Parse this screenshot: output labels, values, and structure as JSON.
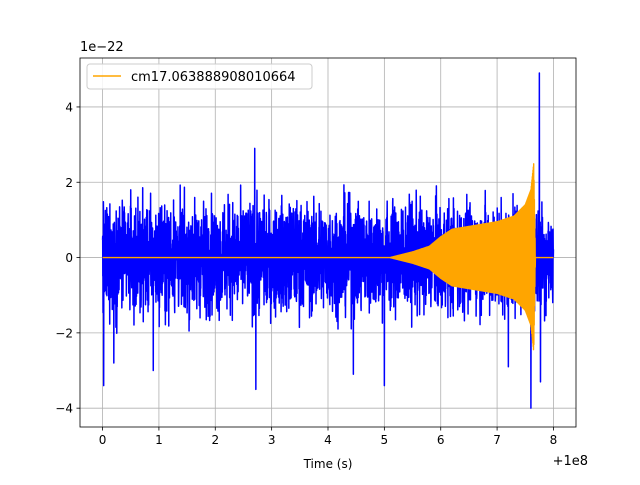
{
  "chart_data": {
    "type": "line",
    "title": "",
    "xlabel": "Time (s)",
    "ylabel": "",
    "xlim": [
      -0.4,
      8.4
    ],
    "ylim": [
      -4.5,
      5.3
    ],
    "x_offset_label": "+1e8",
    "y_scale_label": "1e−22",
    "x_ticks": [
      0,
      1,
      2,
      3,
      4,
      5,
      6,
      7,
      8
    ],
    "x_tick_labels": [
      "0",
      "1",
      "2",
      "3",
      "4",
      "5",
      "6",
      "7",
      "8"
    ],
    "y_ticks": [
      -4,
      -2,
      0,
      2,
      4
    ],
    "y_tick_labels": [
      "−4",
      "−2",
      "0",
      "2",
      "4"
    ],
    "grid": true,
    "legend_position": "top-left",
    "series": [
      {
        "name": "",
        "color": "#0000ff",
        "description": "noisy strain data, amplitude mostly within ±2.5e-22 with spikes",
        "x_range": [
          0,
          8
        ],
        "noise_amplitude": 1.0,
        "spikes": [
          {
            "x": 0.02,
            "y": -3.4
          },
          {
            "x": 0.2,
            "y": -2.8
          },
          {
            "x": 0.9,
            "y": -3.0
          },
          {
            "x": 2.7,
            "y": 2.9
          },
          {
            "x": 2.72,
            "y": -3.5
          },
          {
            "x": 4.45,
            "y": -3.1
          },
          {
            "x": 5.0,
            "y": -3.4
          },
          {
            "x": 7.2,
            "y": -2.9
          },
          {
            "x": 7.6,
            "y": -4.0
          },
          {
            "x": 7.75,
            "y": 4.9
          },
          {
            "x": 7.77,
            "y": -3.3
          }
        ]
      },
      {
        "name": "cm17.063888908010664",
        "color": "#ffa500",
        "description": "chirp template, zero until ~5.1, amplitude grows to ~2.5 near 7.65 then drops to zero at ~7.68",
        "envelope": [
          {
            "x": 0.0,
            "y": 0.0
          },
          {
            "x": 5.1,
            "y": 0.0
          },
          {
            "x": 5.5,
            "y": 0.15
          },
          {
            "x": 5.8,
            "y": 0.3
          },
          {
            "x": 6.0,
            "y": 0.55
          },
          {
            "x": 6.2,
            "y": 0.75
          },
          {
            "x": 6.4,
            "y": 0.8
          },
          {
            "x": 6.6,
            "y": 0.85
          },
          {
            "x": 7.0,
            "y": 0.95
          },
          {
            "x": 7.3,
            "y": 1.1
          },
          {
            "x": 7.5,
            "y": 1.4
          },
          {
            "x": 7.6,
            "y": 1.8
          },
          {
            "x": 7.65,
            "y": 2.5
          },
          {
            "x": 7.68,
            "y": 0.0
          },
          {
            "x": 8.0,
            "y": 0.0
          }
        ]
      }
    ]
  }
}
